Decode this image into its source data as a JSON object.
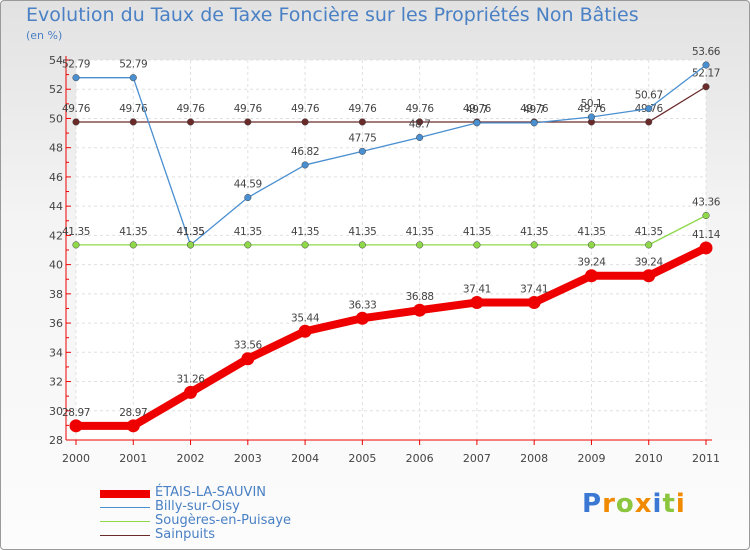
{
  "chart_data": {
    "type": "line",
    "title": "Evolution du Taux de Taxe Foncière sur les Propriétés Non Bâties",
    "subtitle": "(en %)",
    "categories": [
      "2000",
      "2001",
      "2002",
      "2003",
      "2004",
      "2005",
      "2006",
      "2007",
      "2008",
      "2009",
      "2010",
      "2011"
    ],
    "ylim": [
      28,
      54
    ],
    "yticks": [
      28,
      30,
      32,
      34,
      36,
      38,
      40,
      42,
      44,
      46,
      48,
      50,
      52,
      54
    ],
    "grid": true,
    "series": [
      {
        "name": "Sainpuits",
        "color": "#6b2a2a",
        "values": [
          49.76,
          49.76,
          49.76,
          49.76,
          49.76,
          49.76,
          49.76,
          49.76,
          49.76,
          49.76,
          49.76,
          52.17
        ],
        "labels": [
          "49.76",
          "49.76",
          "49.76",
          "49.76",
          "49.76",
          "49.76",
          "49.76",
          "49.76",
          "49.76",
          "49.76",
          "49.76",
          "52.17"
        ]
      },
      {
        "name": "Billy-sur-Oisy",
        "color": "#4a8fd0",
        "values": [
          52.79,
          52.79,
          41.35,
          44.59,
          46.82,
          47.75,
          48.7,
          49.7,
          49.7,
          50.1,
          50.67,
          53.66
        ],
        "labels": [
          "52.79",
          "52.79",
          "41.35",
          "44.59",
          "46.82",
          "47.75",
          "48.7",
          "49.7",
          "49.7",
          "50.1",
          "50.67",
          "53.66"
        ]
      },
      {
        "name": "Sougères-en-Puisaye",
        "color": "#8fd84a",
        "values": [
          41.35,
          41.35,
          41.35,
          41.35,
          41.35,
          41.35,
          41.35,
          41.35,
          41.35,
          41.35,
          41.35,
          43.36
        ],
        "labels": [
          "41.35",
          "41.35",
          "41.35",
          "41.35",
          "41.35",
          "41.35",
          "41.35",
          "41.35",
          "41.35",
          "41.35",
          "41.35",
          "43.36"
        ]
      },
      {
        "name": "ÉTAIS-LA-SAUVIN",
        "color": "#ee0000",
        "values": [
          28.97,
          28.97,
          31.26,
          33.56,
          35.44,
          36.33,
          36.88,
          37.41,
          37.41,
          39.24,
          39.24,
          41.14
        ],
        "labels": [
          "28.97",
          "28.97",
          "31.26",
          "33.56",
          "35.44",
          "36.33",
          "36.88",
          "37.41",
          "37.41",
          "39.24",
          "39.24",
          "41.14"
        ]
      }
    ],
    "legend": [
      "ÉTAIS-LA-SAUVIN",
      "Billy-sur-Oisy",
      "Sougères-en-Puisaye",
      "Sainpuits"
    ]
  },
  "logo": {
    "letters": [
      "P",
      "r",
      "o",
      "x",
      "i",
      "t",
      "i"
    ],
    "colors": [
      "#3a78d4",
      "#f08a00",
      "#8cc63f",
      "#f08a00",
      "#3a78d4",
      "#8cc63f",
      "#f08a00"
    ]
  }
}
